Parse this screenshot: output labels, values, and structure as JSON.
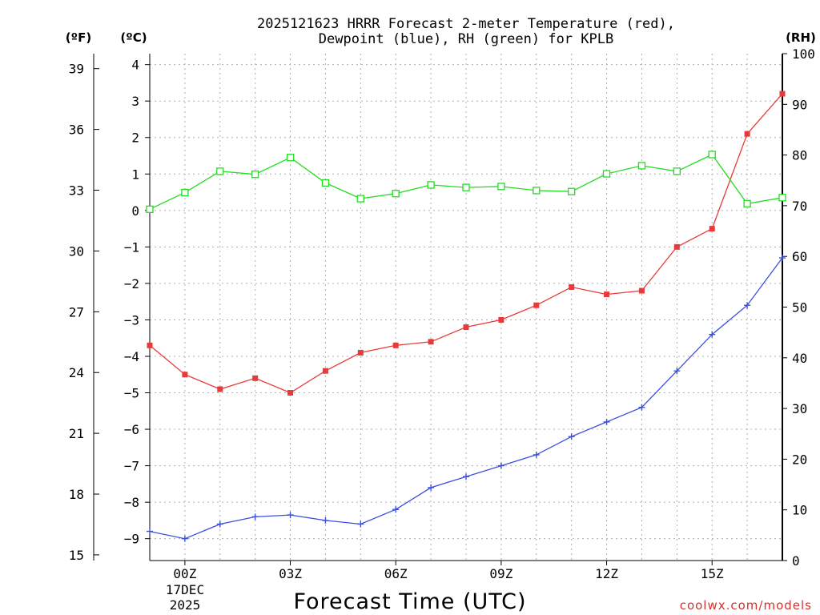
{
  "chart_data": {
    "type": "line",
    "title_line1": "2025121623 HRRR Forecast 2-meter Temperature (red),",
    "title_line2": "Dewpoint (blue), RH (green) for KPLB",
    "xlabel": "Forecast Time (UTC)",
    "date_line1": "17DEC",
    "date_line2": "2025",
    "watermark": "coolwx.com/models",
    "unit_f": "(ºF)",
    "unit_c": "(ºC)",
    "unit_rh": "(RH)",
    "x_hours": [
      -1,
      0,
      1,
      2,
      3,
      4,
      5,
      6,
      7,
      8,
      9,
      10,
      11,
      12,
      13,
      14,
      15,
      16,
      17
    ],
    "xlim": [
      -1,
      17
    ],
    "x_ticks": [
      {
        "hour": 0,
        "label": "00Z"
      },
      {
        "hour": 3,
        "label": "03Z"
      },
      {
        "hour": 6,
        "label": "06Z"
      },
      {
        "hour": 9,
        "label": "09Z"
      },
      {
        "hour": 12,
        "label": "12Z"
      },
      {
        "hour": 15,
        "label": "15Z"
      }
    ],
    "ylim_c": [
      -9.6,
      4.3
    ],
    "y_ticks_c": [
      4,
      3,
      2,
      1,
      0,
      -1,
      -2,
      -3,
      -4,
      -5,
      -6,
      -7,
      -8,
      -9
    ],
    "y_tick_labels_c": [
      "4",
      "3",
      "2",
      "1",
      "0",
      "−1",
      "−2",
      "−3",
      "−4",
      "−5",
      "−6",
      "−7",
      "−8",
      "−9"
    ],
    "y_ticks_f": [
      39,
      36,
      33,
      30,
      27,
      24,
      21,
      18,
      15
    ],
    "y_tick_labels_f": [
      "39",
      "36",
      "33",
      "30",
      "27",
      "24",
      "21",
      "18",
      "15"
    ],
    "ylim_rh": [
      0,
      100
    ],
    "y_ticks_rh": [
      100,
      90,
      80,
      70,
      60,
      50,
      40,
      30,
      20,
      10,
      0
    ],
    "y_tick_labels_rh": [
      "100",
      "90",
      "80",
      "70",
      "60",
      "50",
      "40",
      "30",
      "20",
      "10",
      "0"
    ],
    "series": [
      {
        "name": "Temperature",
        "axis": "celsius",
        "color": "#e83a3a",
        "marker": "filled-square",
        "values": [
          -3.7,
          -4.5,
          -4.9,
          -4.6,
          -5.0,
          -4.4,
          -3.9,
          -3.7,
          -3.6,
          -3.2,
          -3.0,
          -2.6,
          -2.1,
          -2.3,
          -2.2,
          -1.0,
          -0.5,
          2.1,
          3.2
        ]
      },
      {
        "name": "Dewpoint",
        "axis": "celsius",
        "color": "#3a4fe0",
        "marker": "plus",
        "values": [
          -8.8,
          -9.0,
          -8.6,
          -8.4,
          -8.35,
          -8.5,
          -8.6,
          -8.2,
          -7.6,
          -7.3,
          -7.0,
          -6.7,
          -6.2,
          -5.8,
          -5.4,
          -4.4,
          -3.4,
          -2.6,
          -1.3
        ]
      },
      {
        "name": "RH",
        "axis": "rh",
        "color": "#22dd22",
        "marker": "open-square",
        "values": [
          69.3,
          72.6,
          76.8,
          76.2,
          79.5,
          74.5,
          71.4,
          72.4,
          74.1,
          73.6,
          73.8,
          73.0,
          72.8,
          76.3,
          77.9,
          76.8,
          80.1,
          70.4,
          71.6
        ]
      }
    ]
  }
}
